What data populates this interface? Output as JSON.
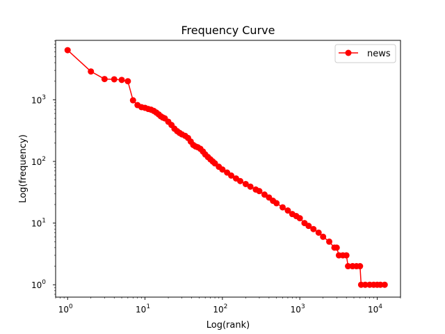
{
  "chart_data": {
    "type": "line",
    "title": "Frequency Curve",
    "xlabel": "Log(rank)",
    "ylabel": "Log(frequency)",
    "xscale": "log",
    "yscale": "log",
    "xlim": [
      0.7,
      20000
    ],
    "ylim": [
      0.63,
      9200
    ],
    "grid": false,
    "legend_position": "top-right",
    "x_ticks": [
      {
        "value": 1,
        "base": "10",
        "exp": "0"
      },
      {
        "value": 10,
        "base": "10",
        "exp": "1"
      },
      {
        "value": 100,
        "base": "10",
        "exp": "2"
      },
      {
        "value": 1000,
        "base": "10",
        "exp": "3"
      },
      {
        "value": 10000,
        "base": "10",
        "exp": "4"
      }
    ],
    "y_ticks": [
      {
        "value": 1,
        "base": "10",
        "exp": "0"
      },
      {
        "value": 10,
        "base": "10",
        "exp": "1"
      },
      {
        "value": 100,
        "base": "10",
        "exp": "2"
      },
      {
        "value": 1000,
        "base": "10",
        "exp": "3"
      }
    ],
    "series": [
      {
        "name": "news",
        "color": "#ff0000",
        "marker": "circle",
        "points": [
          [
            1,
            6380
          ],
          [
            2,
            2880
          ],
          [
            3,
            2170
          ],
          [
            4,
            2150
          ],
          [
            5,
            2100
          ],
          [
            6,
            2000
          ],
          [
            7,
            980
          ],
          [
            8,
            820
          ],
          [
            9,
            760
          ],
          [
            10,
            740
          ],
          [
            11,
            710
          ],
          [
            12,
            690
          ],
          [
            13,
            660
          ],
          [
            14,
            620
          ],
          [
            15,
            580
          ],
          [
            16,
            540
          ],
          [
            17,
            515
          ],
          [
            18,
            500
          ],
          [
            20,
            440
          ],
          [
            22,
            390
          ],
          [
            24,
            340
          ],
          [
            26,
            310
          ],
          [
            28,
            290
          ],
          [
            30,
            275
          ],
          [
            33,
            260
          ],
          [
            36,
            240
          ],
          [
            39,
            210
          ],
          [
            42,
            185
          ],
          [
            45,
            175
          ],
          [
            48,
            170
          ],
          [
            52,
            160
          ],
          [
            56,
            145
          ],
          [
            60,
            130
          ],
          [
            65,
            118
          ],
          [
            70,
            108
          ],
          [
            75,
            100
          ],
          [
            80,
            93
          ],
          [
            90,
            82
          ],
          [
            100,
            74
          ],
          [
            115,
            66
          ],
          [
            130,
            59
          ],
          [
            150,
            53
          ],
          [
            170,
            48
          ],
          [
            200,
            43
          ],
          [
            230,
            39
          ],
          [
            270,
            35
          ],
          [
            300,
            33
          ],
          [
            350,
            29
          ],
          [
            400,
            26
          ],
          [
            450,
            23
          ],
          [
            500,
            21
          ],
          [
            600,
            18
          ],
          [
            700,
            16
          ],
          [
            800,
            14
          ],
          [
            900,
            13
          ],
          [
            1000,
            12
          ],
          [
            1150,
            10
          ],
          [
            1300,
            9
          ],
          [
            1500,
            8
          ],
          [
            1750,
            7
          ],
          [
            2000,
            6
          ],
          [
            2400,
            5
          ],
          [
            2800,
            4
          ],
          [
            3000,
            4
          ],
          [
            3200,
            3
          ],
          [
            3600,
            3
          ],
          [
            4000,
            3
          ],
          [
            4200,
            2
          ],
          [
            4800,
            2
          ],
          [
            5400,
            2
          ],
          [
            6000,
            2
          ],
          [
            6200,
            1
          ],
          [
            7000,
            1
          ],
          [
            8000,
            1
          ],
          [
            9000,
            1
          ],
          [
            10000,
            1
          ],
          [
            11000,
            1
          ],
          [
            12500,
            1
          ]
        ]
      }
    ]
  }
}
